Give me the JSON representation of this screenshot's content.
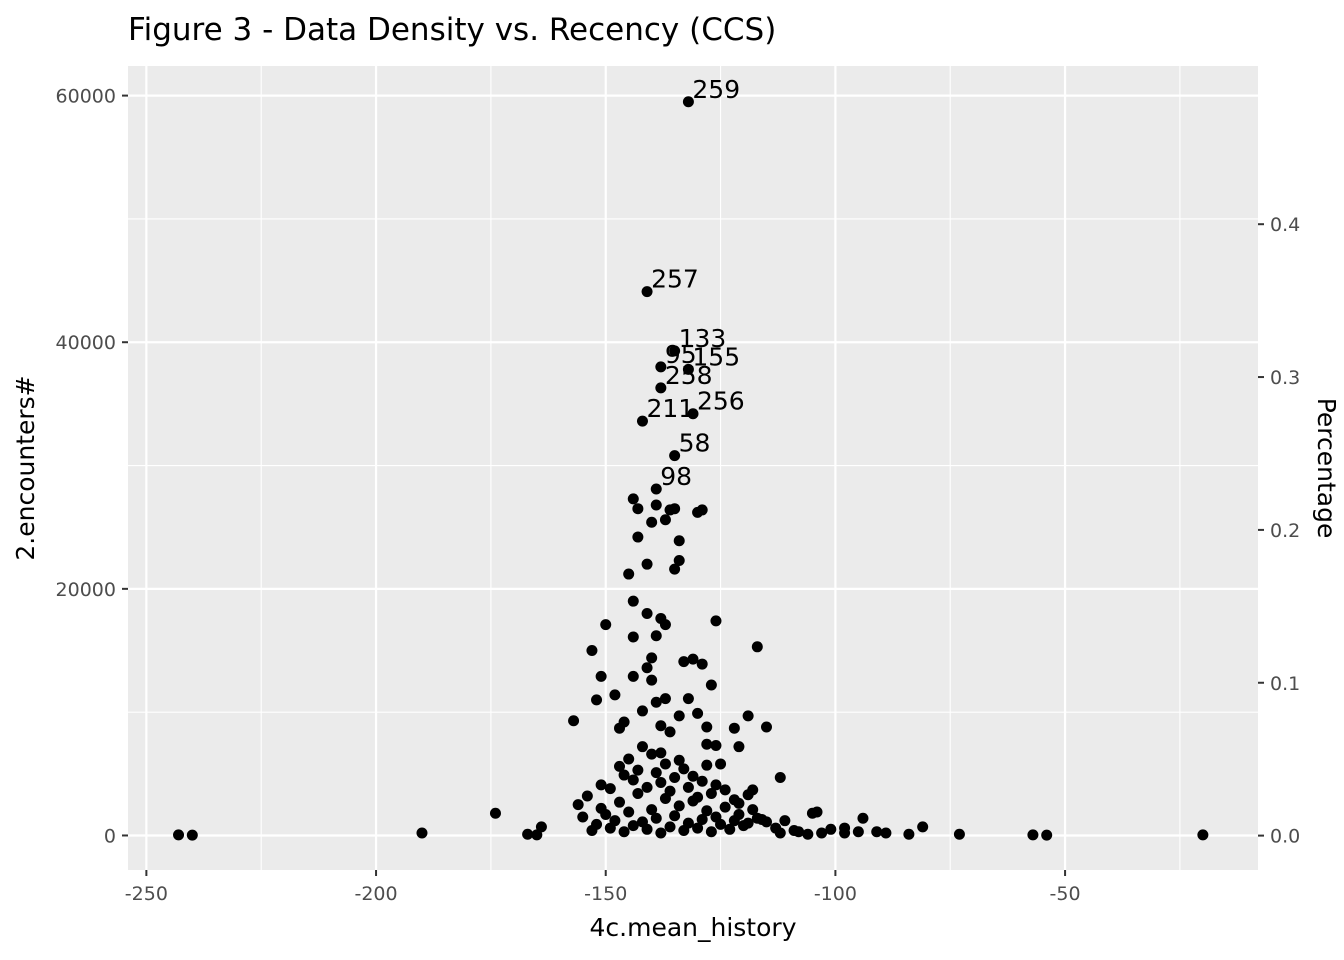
{
  "chart_data": {
    "type": "scatter",
    "title": "Figure 3 - Data Density vs. Recency (CCS)",
    "xlabel": "4c.mean_history",
    "ylabel": "2.encounters#",
    "y2label": "Percentage",
    "xlim": [
      -254,
      -8
    ],
    "ylim": [
      -2800,
      62400
    ],
    "y2lim": [
      -0.0225,
      0.5035
    ],
    "x_ticks": [
      -250,
      -200,
      -150,
      -100,
      -50
    ],
    "x_tick_labels": [
      "-250",
      "-200",
      "-150",
      "-100",
      "-50"
    ],
    "y_ticks": [
      0,
      20000,
      40000,
      60000
    ],
    "y_tick_labels": [
      "0",
      "20000",
      "40000",
      "60000"
    ],
    "y2_ticks": [
      0.0,
      0.1,
      0.2,
      0.3,
      0.4
    ],
    "y2_tick_labels": [
      "0.0",
      "0.1",
      "0.2",
      "0.3",
      "0.4"
    ],
    "grid": true,
    "panel_background": "#ebebeb",
    "point_color": "#000000",
    "labeled_points": [
      {
        "label": "259",
        "x": -132,
        "y": 59500
      },
      {
        "label": "257",
        "x": -141,
        "y": 44100
      },
      {
        "label": "133",
        "x": -135,
        "y": 39300
      },
      {
        "label": "95",
        "x": -138,
        "y": 38000
      },
      {
        "label": "155",
        "x": -132,
        "y": 37800
      },
      {
        "label": "258",
        "x": -138,
        "y": 36300
      },
      {
        "label": "211",
        "x": -142,
        "y": 33600
      },
      {
        "label": "256",
        "x": -131,
        "y": 34200
      },
      {
        "label": "58",
        "x": -135,
        "y": 30800
      },
      {
        "label": "98",
        "x": -139,
        "y": 28100
      }
    ],
    "points": [
      [
        -243,
        50
      ],
      [
        -240,
        30
      ],
      [
        -190,
        200
      ],
      [
        -174,
        1800
      ],
      [
        -167,
        100
      ],
      [
        -165,
        50
      ],
      [
        -164,
        700
      ],
      [
        -156,
        2500
      ],
      [
        -155,
        1500
      ],
      [
        -154,
        3200
      ],
      [
        -153,
        400
      ],
      [
        -152,
        900
      ],
      [
        -151,
        2200
      ],
      [
        -150,
        1700
      ],
      [
        -149,
        600
      ],
      [
        -148,
        1200
      ],
      [
        -147,
        2700
      ],
      [
        -146,
        300
      ],
      [
        -145,
        1900
      ],
      [
        -144,
        800
      ],
      [
        -143,
        3400
      ],
      [
        -142,
        1100
      ],
      [
        -141,
        500
      ],
      [
        -140,
        2100
      ],
      [
        -139,
        1400
      ],
      [
        -138,
        200
      ],
      [
        -137,
        3000
      ],
      [
        -136,
        700
      ],
      [
        -135,
        1600
      ],
      [
        -134,
        2400
      ],
      [
        -133,
        400
      ],
      [
        -132,
        1000
      ],
      [
        -131,
        2800
      ],
      [
        -130,
        600
      ],
      [
        -129,
        1300
      ],
      [
        -128,
        2000
      ],
      [
        -127,
        300
      ],
      [
        -126,
        1500
      ],
      [
        -125,
        900
      ],
      [
        -124,
        2300
      ],
      [
        -123,
        500
      ],
      [
        -122,
        1200
      ],
      [
        -121,
        1700
      ],
      [
        -120,
        800
      ],
      [
        -119,
        1000
      ],
      [
        -118,
        2100
      ],
      [
        -117,
        1400
      ],
      [
        -116,
        1300
      ],
      [
        -115,
        1100
      ],
      [
        -113,
        600
      ],
      [
        -112,
        200
      ],
      [
        -111,
        1200
      ],
      [
        -109,
        400
      ],
      [
        -108,
        300
      ],
      [
        -106,
        100
      ],
      [
        -105,
        1800
      ],
      [
        -104,
        1900
      ],
      [
        -103,
        200
      ],
      [
        -101,
        500
      ],
      [
        -98,
        600
      ],
      [
        -98,
        200
      ],
      [
        -95,
        300
      ],
      [
        -94,
        1400
      ],
      [
        -91,
        300
      ],
      [
        -89,
        200
      ],
      [
        -84,
        100
      ],
      [
        -81,
        700
      ],
      [
        -73,
        100
      ],
      [
        -57,
        50
      ],
      [
        -54,
        30
      ],
      [
        -20,
        50
      ],
      [
        -151,
        4100
      ],
      [
        -149,
        3800
      ],
      [
        -147,
        5600
      ],
      [
        -146,
        4900
      ],
      [
        -145,
        6200
      ],
      [
        -144,
        4500
      ],
      [
        -143,
        5300
      ],
      [
        -142,
        7200
      ],
      [
        -141,
        3900
      ],
      [
        -140,
        6600
      ],
      [
        -139,
        5100
      ],
      [
        -138,
        4300
      ],
      [
        -137,
        5800
      ],
      [
        -136,
        3600
      ],
      [
        -135,
        4700
      ],
      [
        -134,
        6100
      ],
      [
        -133,
        5400
      ],
      [
        -132,
        3900
      ],
      [
        -131,
        4800
      ],
      [
        -130,
        3100
      ],
      [
        -129,
        4400
      ],
      [
        -128,
        5700
      ],
      [
        -127,
        3400
      ],
      [
        -126,
        4100
      ],
      [
        -125,
        5800
      ],
      [
        -124,
        3700
      ],
      [
        -122,
        2900
      ],
      [
        -121,
        2600
      ],
      [
        -119,
        3300
      ],
      [
        -118,
        3700
      ],
      [
        -157,
        9300
      ],
      [
        -153,
        15000
      ],
      [
        -152,
        11000
      ],
      [
        -151,
        12900
      ],
      [
        -150,
        17100
      ],
      [
        -148,
        11400
      ],
      [
        -147,
        8700
      ],
      [
        -146,
        9200
      ],
      [
        -144,
        12900
      ],
      [
        -144,
        16100
      ],
      [
        -142,
        10100
      ],
      [
        -141,
        13600
      ],
      [
        -140,
        12600
      ],
      [
        -140,
        14400
      ],
      [
        -139,
        10800
      ],
      [
        -138,
        8900
      ],
      [
        -137,
        11100
      ],
      [
        -136,
        8400
      ],
      [
        -134,
        9700
      ],
      [
        -133,
        14100
      ],
      [
        -132,
        11100
      ],
      [
        -131,
        14300
      ],
      [
        -130,
        9900
      ],
      [
        -129,
        13900
      ],
      [
        -128,
        8800
      ],
      [
        -127,
        12200
      ],
      [
        -126,
        17400
      ],
      [
        -122,
        8700
      ],
      [
        -121,
        7200
      ],
      [
        -119,
        9700
      ],
      [
        -117,
        15300
      ],
      [
        -115,
        8800
      ],
      [
        -112,
        4700
      ],
      [
        -126,
        7300
      ],
      [
        -128,
        7400
      ],
      [
        -138,
        6700
      ],
      [
        -144,
        19000
      ],
      [
        -141,
        18000
      ],
      [
        -139,
        16200
      ],
      [
        -137,
        17100
      ],
      [
        -138,
        17600
      ],
      [
        -145,
        21200
      ],
      [
        -143,
        24200
      ],
      [
        -141,
        22000
      ],
      [
        -140,
        25400
      ],
      [
        -144,
        27300
      ],
      [
        -143,
        26500
      ],
      [
        -139,
        26800
      ],
      [
        -137,
        25600
      ],
      [
        -136,
        26400
      ],
      [
        -135,
        26500
      ],
      [
        -134,
        23900
      ],
      [
        -134,
        22300
      ],
      [
        -135,
        21600
      ],
      [
        -130,
        26200
      ],
      [
        -129,
        26400
      ]
    ]
  }
}
